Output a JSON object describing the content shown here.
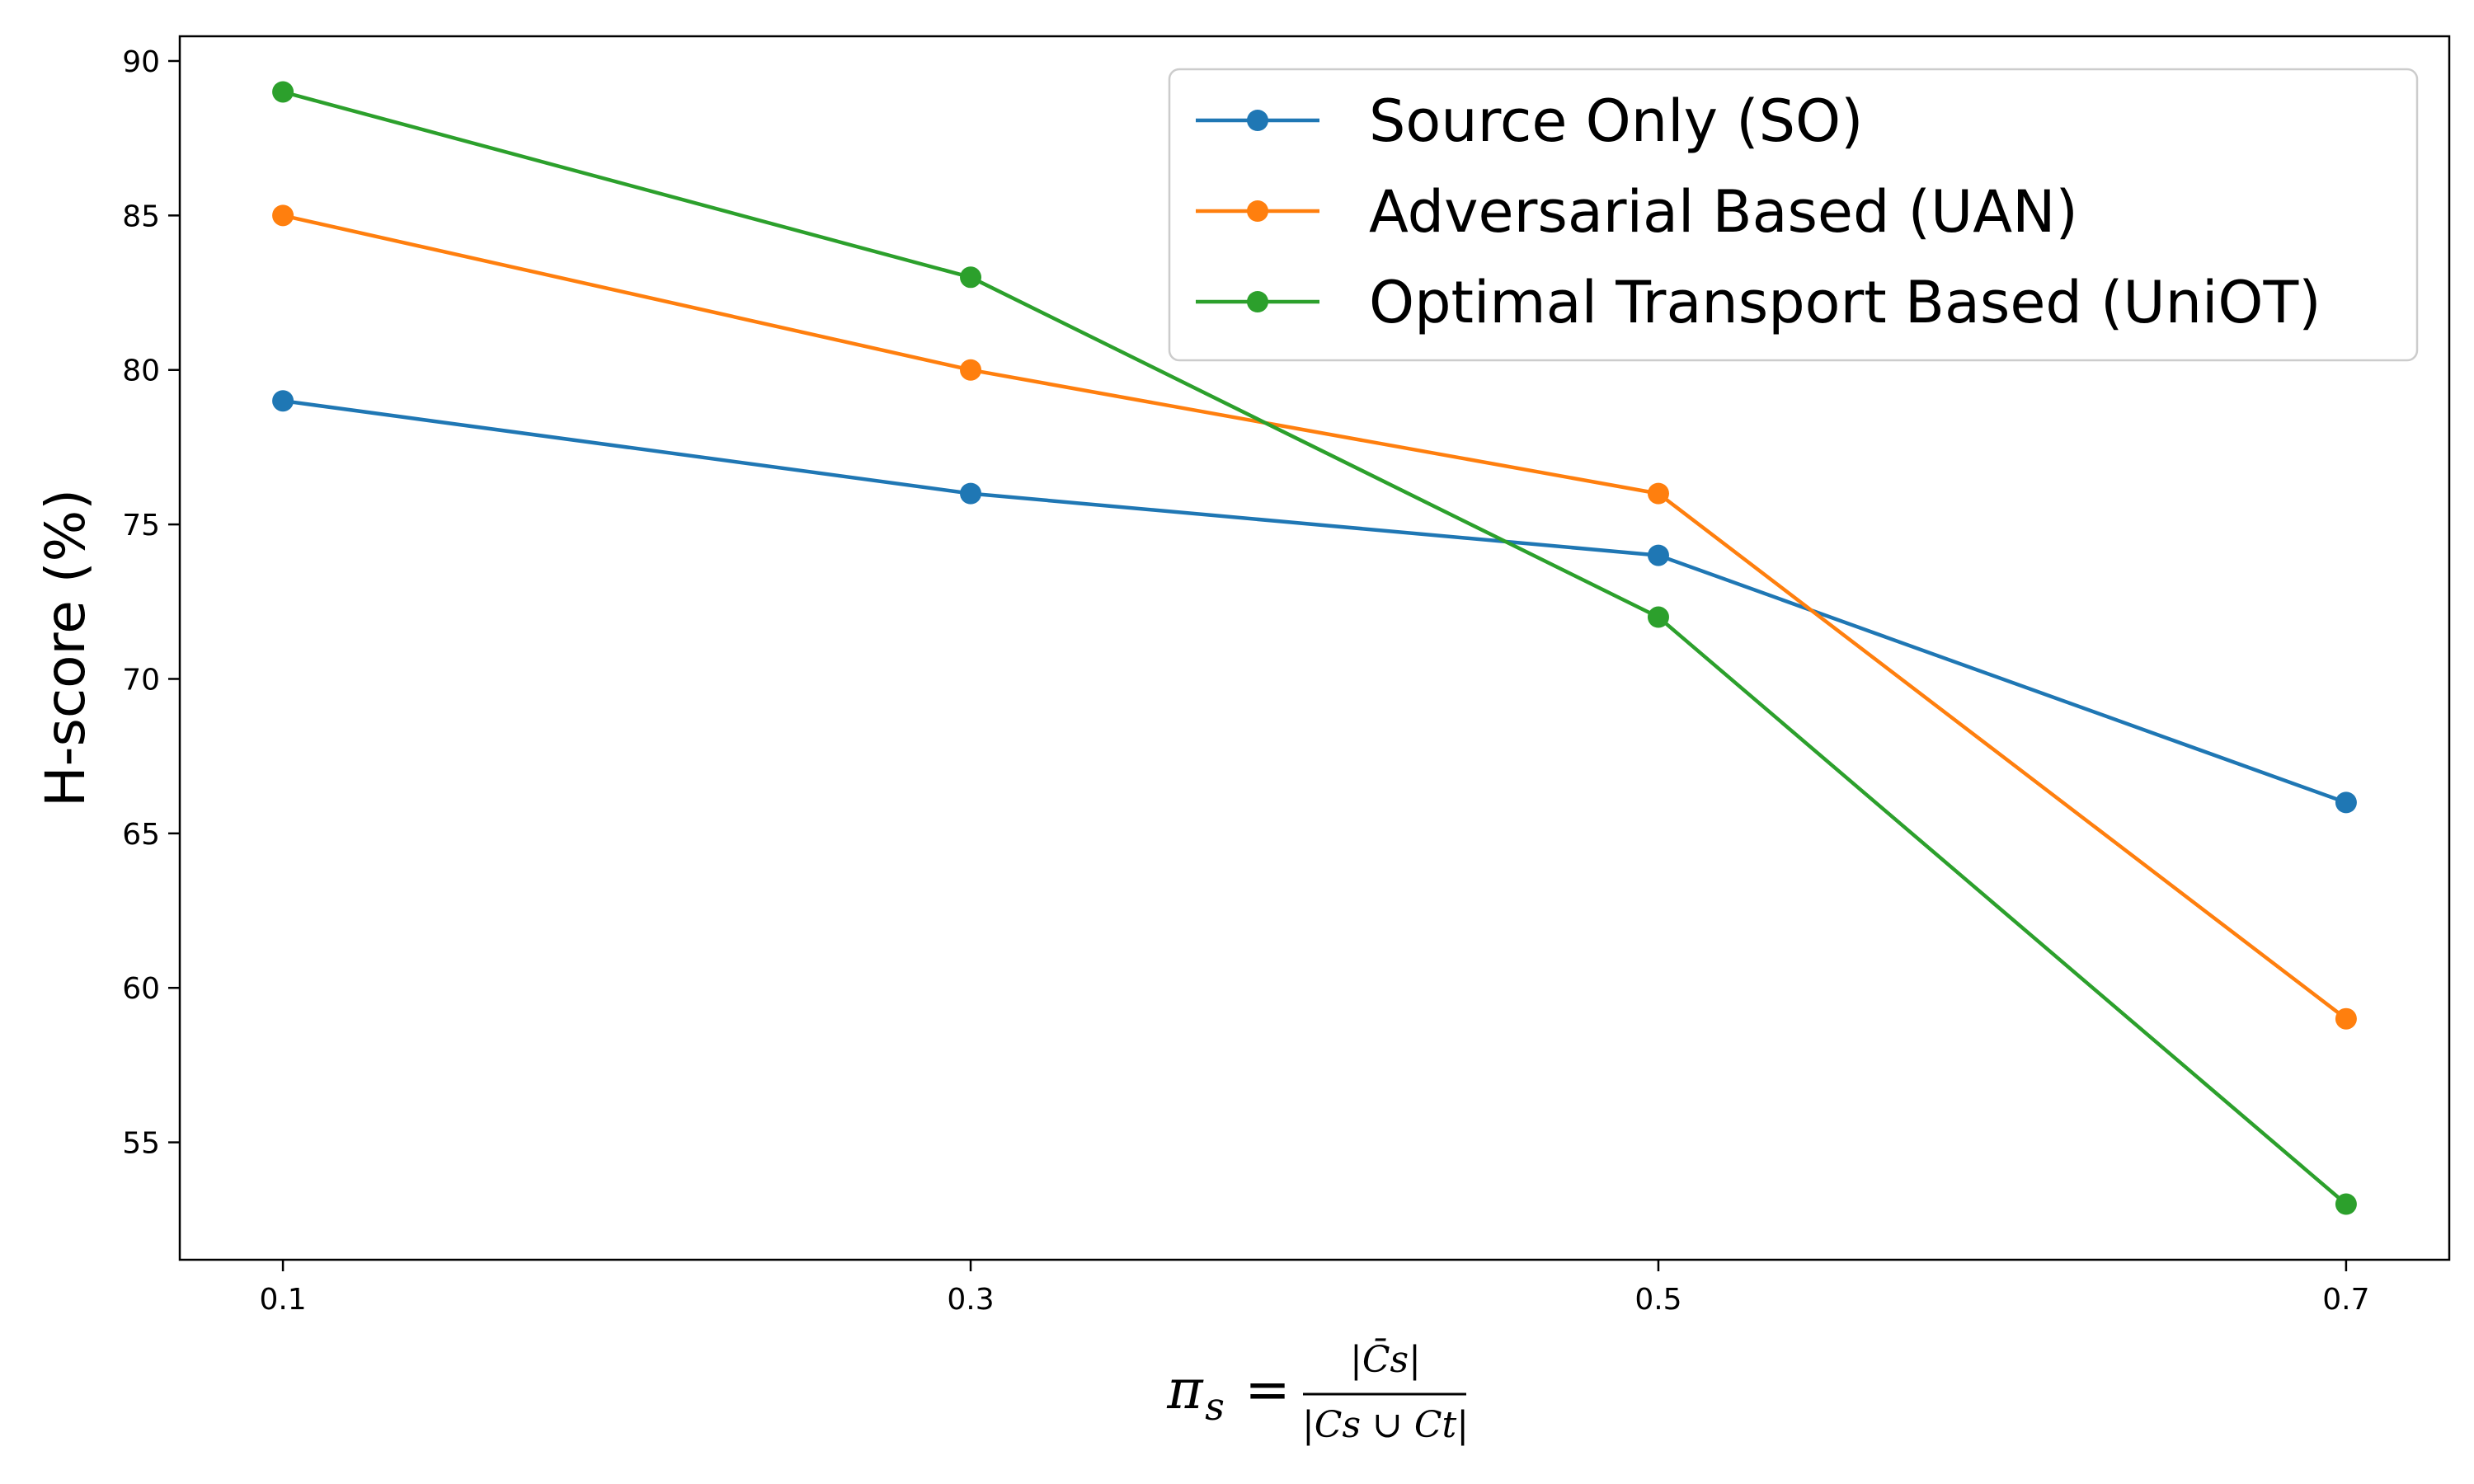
{
  "chart_data": {
    "type": "line",
    "x": [
      0.1,
      0.3,
      0.5,
      0.7
    ],
    "x_tick_labels": [
      "0.1",
      "0.3",
      "0.5",
      "0.7"
    ],
    "xlim": [
      0.07,
      0.73
    ],
    "ylim": [
      51.2,
      90.8
    ],
    "y_ticks": [
      55,
      60,
      65,
      70,
      75,
      80,
      85,
      90
    ],
    "ylabel": "H-score (%)",
    "xlabel_parts": {
      "lhs": "π",
      "lhs_sub": "s",
      "eq": "=",
      "num": "|C̄s|",
      "den": "|Cs ∪ Ct|"
    },
    "grid": false,
    "legend_position": "top-right",
    "markers": "circle",
    "series": [
      {
        "name": "Source Only (SO)",
        "color": "#1f77b4",
        "values": [
          79,
          76,
          74,
          66
        ]
      },
      {
        "name": "Adversarial Based (UAN)",
        "color": "#ff7f0e",
        "values": [
          85,
          80,
          76,
          59
        ]
      },
      {
        "name": "Optimal Transport Based (UniOT)",
        "color": "#2ca02c",
        "values": [
          89,
          83,
          72,
          53
        ]
      }
    ]
  }
}
